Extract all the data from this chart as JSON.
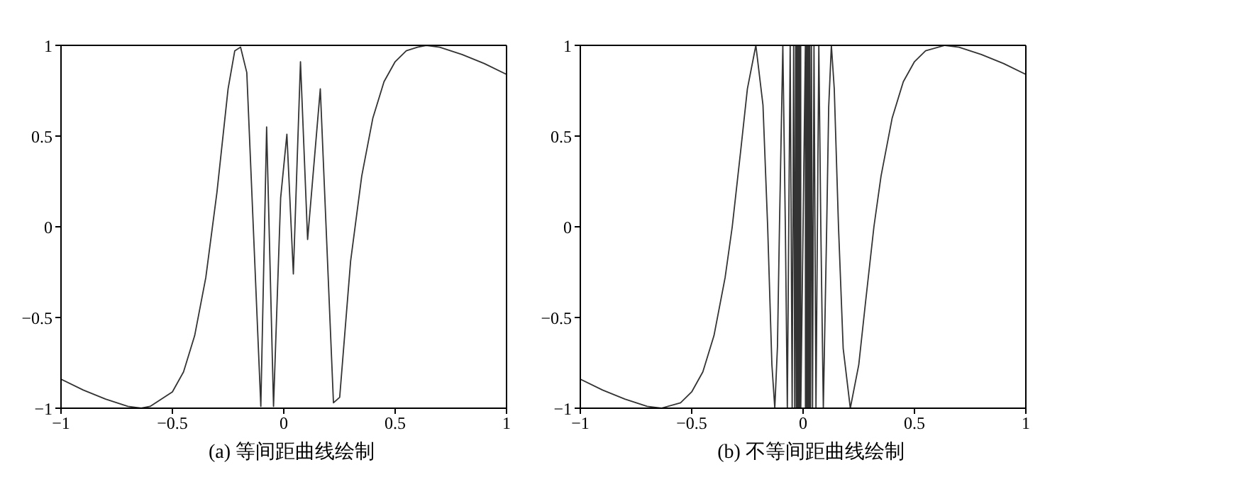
{
  "chart_data": [
    {
      "type": "line",
      "title": "(a) 等间距曲线绘制",
      "marker": "none",
      "line_style": "solid",
      "grid": false,
      "legend": false,
      "xlim": [
        -1,
        1
      ],
      "xticks": [
        -1,
        -0.5,
        0,
        0.5,
        1
      ],
      "ylim": [
        -1,
        1
      ],
      "yticks": [
        -1,
        -0.5,
        0,
        0.5,
        1
      ],
      "x": [
        -1,
        -0.9,
        -0.8,
        -0.7,
        -0.64,
        -0.6,
        -0.5,
        -0.45,
        -0.4,
        -0.35,
        -0.3,
        -0.25,
        -0.22,
        -0.194,
        -0.166,
        -0.103,
        -0.077,
        -0.046,
        -0.014,
        0.014,
        0.043,
        0.075,
        0.107,
        0.164,
        0.223,
        0.251,
        0.3,
        0.35,
        0.4,
        0.45,
        0.5,
        0.55,
        0.6,
        0.64,
        0.7,
        0.8,
        0.9,
        1
      ],
      "series": [
        {
          "color": "#333333",
          "values": [
            -0.84,
            -0.9,
            -0.95,
            -0.99,
            -1,
            -0.99,
            -0.91,
            -0.8,
            -0.6,
            -0.28,
            0.19,
            0.76,
            0.97,
            0.99,
            0.85,
            -0.99,
            0.55,
            -0.99,
            0.16,
            0.51,
            -0.26,
            0.91,
            -0.07,
            0.76,
            -0.97,
            -0.94,
            -0.19,
            0.28,
            0.6,
            0.8,
            0.91,
            0.97,
            0.99,
            1,
            0.99,
            0.95,
            0.9,
            0.84
          ]
        }
      ]
    },
    {
      "type": "line",
      "title": "(b) 不等间距曲线绘制",
      "marker": "none",
      "line_style": "solid",
      "grid": false,
      "legend": false,
      "xlim": [
        -1,
        1
      ],
      "xticks": [
        -1,
        -0.5,
        0,
        0.5,
        1
      ],
      "ylim": [
        -1,
        1
      ],
      "yticks": [
        -1,
        -0.5,
        0,
        0.5,
        1
      ],
      "x": [
        -1,
        -0.9,
        -0.8,
        -0.7,
        -0.637,
        -0.55,
        -0.5,
        -0.45,
        -0.4,
        -0.35,
        -0.318,
        -0.28,
        -0.25,
        -0.212,
        -0.18,
        -0.159,
        -0.14,
        -0.127,
        -0.115,
        -0.106,
        -0.0909,
        -0.0796,
        -0.0707,
        -0.0579,
        -0.049,
        -0.0424,
        -0.0374,
        -0.0335,
        -0.0303,
        -0.0277,
        -0.0255,
        -0.0236,
        -0.022,
        -0.0205,
        -0.0193,
        -0.0182,
        -0.0172,
        -0.0163,
        -0.0155,
        -0.0148,
        -0.0141,
        -0.0135,
        -0.0129,
        -0.0124,
        -0.0119,
        -0.0115,
        -0.011,
        -0.0107,
        -0.0103,
        0.0103,
        0.0107,
        0.011,
        0.0115,
        0.0119,
        0.0124,
        0.0129,
        0.0135,
        0.0141,
        0.0148,
        0.0155,
        0.0163,
        0.0172,
        0.0182,
        0.0193,
        0.0205,
        0.022,
        0.0236,
        0.0255,
        0.0277,
        0.0303,
        0.0335,
        0.0374,
        0.0424,
        0.049,
        0.0579,
        0.0707,
        0.0796,
        0.0909,
        0.106,
        0.115,
        0.127,
        0.14,
        0.159,
        0.18,
        0.212,
        0.25,
        0.28,
        0.318,
        0.35,
        0.4,
        0.45,
        0.5,
        0.55,
        0.637,
        0.7,
        0.8,
        0.9,
        1
      ],
      "series": [
        {
          "color": "#333333",
          "values": [
            -0.84,
            -0.9,
            -0.95,
            -0.99,
            -1,
            -0.97,
            -0.91,
            -0.8,
            -0.6,
            -0.28,
            0,
            0.42,
            0.76,
            1,
            0.67,
            0,
            -0.76,
            -1,
            -0.66,
            0,
            1,
            0,
            -1,
            1,
            -1,
            1,
            -1,
            1,
            -1,
            1,
            -1,
            1,
            -1,
            1,
            -1,
            1,
            -1,
            1,
            -1,
            1,
            -1,
            1,
            -1,
            1,
            -1,
            1,
            -1,
            1,
            -1,
            1,
            -1,
            1,
            -1,
            1,
            -1,
            1,
            -1,
            1,
            -1,
            1,
            -1,
            1,
            -1,
            1,
            -1,
            1,
            -1,
            1,
            -1,
            1,
            -1,
            1,
            -1,
            1,
            -1,
            1,
            0,
            -1,
            0,
            0.66,
            1,
            0.76,
            0,
            -0.67,
            -1,
            -0.76,
            -0.42,
            0,
            0.28,
            0.6,
            0.8,
            0.91,
            0.97,
            1,
            0.99,
            0.95,
            0.9,
            0.84
          ]
        }
      ]
    }
  ]
}
